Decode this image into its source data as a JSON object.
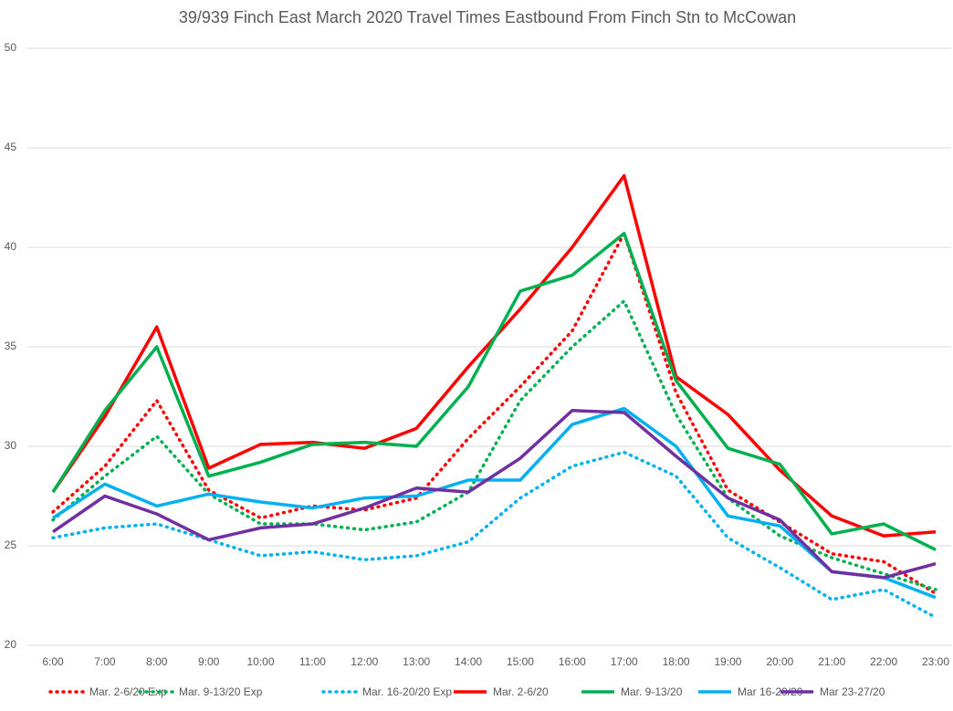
{
  "chart_data": {
    "type": "line",
    "title": "39/939 Finch East March 2020 Travel Times Eastbound From Finch Stn to McCowan",
    "categories": [
      "6:00",
      "7:00",
      "8:00",
      "9:00",
      "10:00",
      "11:00",
      "12:00",
      "13:00",
      "14:00",
      "15:00",
      "16:00",
      "17:00",
      "18:00",
      "19:00",
      "20:00",
      "21:00",
      "22:00",
      "23:00"
    ],
    "ylim": [
      20,
      50
    ],
    "yticks": [
      20,
      25,
      30,
      35,
      40,
      45,
      50
    ],
    "grid": true,
    "legend": "bottom",
    "series": [
      {
        "name": "Mar. 2-6/20 Exp",
        "color": "#ff0000",
        "line_style": "dotted",
        "values": [
          26.7,
          29.0,
          32.3,
          27.8,
          26.4,
          27.0,
          26.8,
          27.4,
          30.4,
          33.0,
          35.8,
          40.7,
          32.7,
          27.8,
          26.2,
          24.6,
          24.2,
          22.6
        ]
      },
      {
        "name": "Mar. 9-13/20 Exp",
        "color": "#00b050",
        "line_style": "dotted",
        "values": [
          26.3,
          28.5,
          30.5,
          27.6,
          26.1,
          26.1,
          25.8,
          26.2,
          27.7,
          32.3,
          35.0,
          37.3,
          31.6,
          27.4,
          25.5,
          24.4,
          23.6,
          22.8
        ]
      },
      {
        "name": "Mar. 16-20/20 Exp",
        "color": "#00b0f0",
        "line_style": "dotted",
        "values": [
          25.4,
          25.9,
          26.1,
          25.3,
          24.5,
          24.7,
          24.3,
          24.5,
          25.2,
          27.4,
          29.0,
          29.7,
          28.5,
          25.4,
          23.9,
          22.3,
          22.8,
          21.4
        ]
      },
      {
        "name": "Mar. 2-6/20",
        "color": "#ff0000",
        "line_style": "solid",
        "values": [
          27.7,
          31.5,
          36.0,
          28.9,
          30.1,
          30.2,
          29.9,
          30.9,
          34.0,
          36.9,
          40.0,
          43.6,
          33.5,
          31.6,
          28.8,
          26.5,
          25.5,
          25.7
        ]
      },
      {
        "name": "Mar. 9-13/20",
        "color": "#00b050",
        "line_style": "solid",
        "values": [
          27.7,
          31.8,
          35.0,
          28.5,
          29.2,
          30.1,
          30.2,
          30.0,
          33.0,
          37.8,
          38.6,
          40.7,
          33.3,
          29.9,
          29.1,
          25.6,
          26.1,
          24.8
        ]
      },
      {
        "name": "Mar 16-20/20",
        "color": "#00b0f0",
        "line_style": "solid",
        "values": [
          26.4,
          28.1,
          27.0,
          27.6,
          27.2,
          26.9,
          27.4,
          27.5,
          28.3,
          28.3,
          31.1,
          31.9,
          30.0,
          26.5,
          26.0,
          23.7,
          23.4,
          22.4
        ]
      },
      {
        "name": "Mar 23-27/20",
        "color": "#7030a0",
        "line_style": "solid",
        "values": [
          25.7,
          27.5,
          26.6,
          25.3,
          25.9,
          26.1,
          26.9,
          27.9,
          27.7,
          29.4,
          31.8,
          31.7,
          29.5,
          27.4,
          26.3,
          23.7,
          23.4,
          24.1
        ]
      }
    ]
  }
}
